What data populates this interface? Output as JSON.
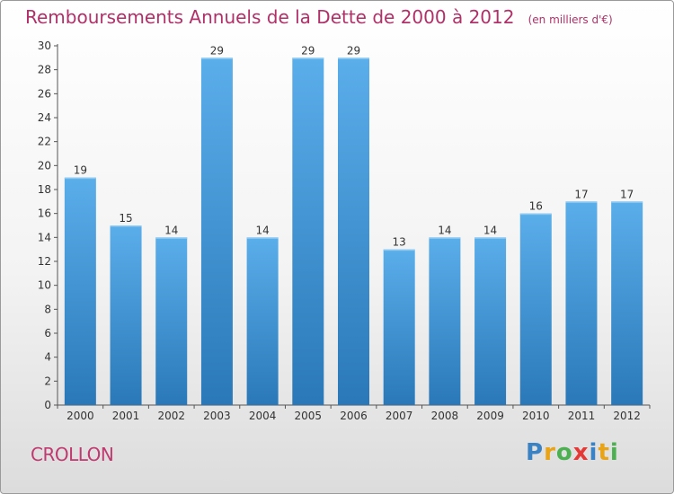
{
  "title": "Remboursements Annuels de la Dette de 2000 à 2012",
  "subtitle": "(en milliers d'€)",
  "commune": "CROLLON",
  "logo": {
    "letters": [
      "P",
      "r",
      "o",
      "x",
      "i",
      "t",
      "i"
    ],
    "colors": [
      "#3b82c4",
      "#e8a317",
      "#4caf50",
      "#e53935",
      "#3b82c4",
      "#e8a317",
      "#4caf50"
    ]
  },
  "chart_data": {
    "type": "bar",
    "categories": [
      "2000",
      "2001",
      "2002",
      "2003",
      "2004",
      "2005",
      "2006",
      "2007",
      "2008",
      "2009",
      "2010",
      "2011",
      "2012"
    ],
    "values": [
      19,
      15,
      14,
      29,
      14,
      29,
      29,
      13,
      14,
      14,
      16,
      17,
      17
    ],
    "ylim": [
      0,
      30
    ],
    "yticks": [
      0,
      2,
      4,
      6,
      8,
      10,
      12,
      14,
      16,
      18,
      20,
      22,
      24,
      26,
      28,
      30
    ],
    "grid": false,
    "bar_color_top": "#5aaeea",
    "bar_color_bottom": "#2a78b8"
  }
}
